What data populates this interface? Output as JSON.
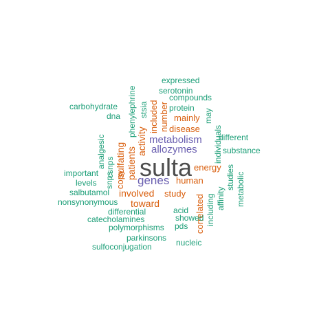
{
  "palette": {
    "main": "#4d4d4d",
    "purple": "#6a5fb0",
    "orange": "#d95f0e",
    "teal": "#1b9e77"
  },
  "words": [
    {
      "text": "sulta",
      "color": "#4d4d4d"
    },
    {
      "text": "metabolism",
      "color": "#6a5fb0"
    },
    {
      "text": "allozymes",
      "color": "#6a5fb0"
    },
    {
      "text": "genes",
      "color": "#6a5fb0"
    },
    {
      "text": "involved",
      "color": "#d95f0e"
    },
    {
      "text": "toward",
      "color": "#d95f0e"
    },
    {
      "text": "study",
      "color": "#d95f0e"
    },
    {
      "text": "human",
      "color": "#d95f0e"
    },
    {
      "text": "energy",
      "color": "#d95f0e"
    },
    {
      "text": "disease",
      "color": "#d95f0e"
    },
    {
      "text": "mainly",
      "color": "#d95f0e"
    },
    {
      "text": "activity",
      "color": "#d95f0e"
    },
    {
      "text": "patients",
      "color": "#d95f0e"
    },
    {
      "text": "sulfating",
      "color": "#d95f0e"
    },
    {
      "text": "copy",
      "color": "#d95f0e"
    },
    {
      "text": "included",
      "color": "#d95f0e"
    },
    {
      "text": "number",
      "color": "#d95f0e"
    },
    {
      "text": "correlated",
      "color": "#d95f0e"
    },
    {
      "text": "expressed",
      "color": "#1b9e77"
    },
    {
      "text": "serotonin",
      "color": "#1b9e77"
    },
    {
      "text": "compounds",
      "color": "#1b9e77"
    },
    {
      "text": "carbohydrate",
      "color": "#1b9e77"
    },
    {
      "text": "protein",
      "color": "#1b9e77"
    },
    {
      "text": "dna",
      "color": "#1b9e77"
    },
    {
      "text": "different",
      "color": "#1b9e77"
    },
    {
      "text": "substance",
      "color": "#1b9e77"
    },
    {
      "text": "important",
      "color": "#1b9e77"
    },
    {
      "text": "levels",
      "color": "#1b9e77"
    },
    {
      "text": "salbutamol",
      "color": "#1b9e77"
    },
    {
      "text": "nonsynonymous",
      "color": "#1b9e77"
    },
    {
      "text": "differential",
      "color": "#1b9e77"
    },
    {
      "text": "acid",
      "color": "#1b9e77"
    },
    {
      "text": "catecholamines",
      "color": "#1b9e77"
    },
    {
      "text": "showed",
      "color": "#1b9e77"
    },
    {
      "text": "polymorphisms",
      "color": "#1b9e77"
    },
    {
      "text": "pds",
      "color": "#1b9e77"
    },
    {
      "text": "parkinsons",
      "color": "#1b9e77"
    },
    {
      "text": "nucleic",
      "color": "#1b9e77"
    },
    {
      "text": "sulfoconjugation",
      "color": "#1b9e77"
    },
    {
      "text": "phenylephrine",
      "color": "#1b9e77"
    },
    {
      "text": "stsia",
      "color": "#1b9e77"
    },
    {
      "text": "may",
      "color": "#1b9e77"
    },
    {
      "text": "individuals",
      "color": "#1b9e77"
    },
    {
      "text": "analgesic",
      "color": "#1b9e77"
    },
    {
      "text": "csnps",
      "color": "#1b9e77"
    },
    {
      "text": "snps",
      "color": "#1b9e77"
    },
    {
      "text": "studies",
      "color": "#1b9e77"
    },
    {
      "text": "affinity",
      "color": "#1b9e77"
    },
    {
      "text": "including",
      "color": "#1b9e77"
    },
    {
      "text": "metabolic",
      "color": "#1b9e77"
    }
  ]
}
